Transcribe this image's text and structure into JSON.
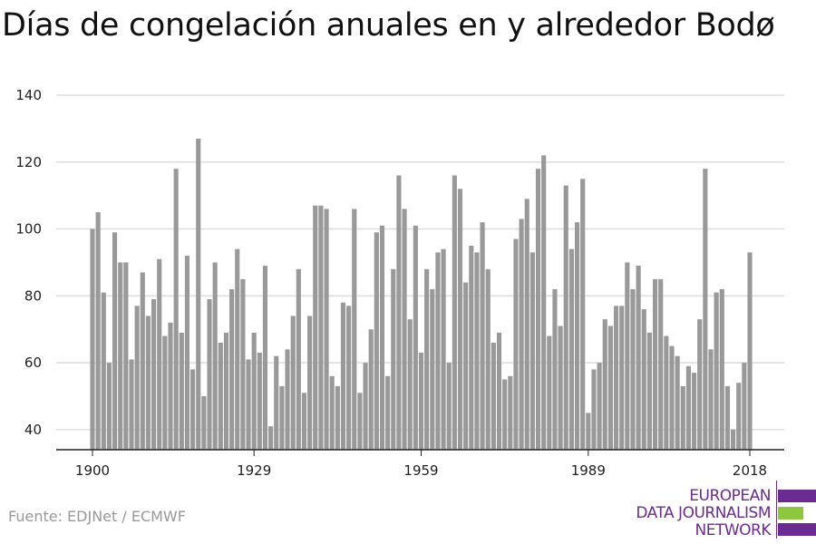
{
  "title": "Días de congelación anuales en y alrededor Bodø",
  "source": "Fuente: EDJNet / ECMWF",
  "logo": {
    "line1": "EUROPEAN",
    "line2": "DATA JOURNALISM",
    "line3": "NETWORK",
    "color_primary": "#6b2c91",
    "color_accent": "#8dc63f"
  },
  "chart_data": {
    "type": "bar",
    "title": "Días de congelación anuales en y alrededor Bodø",
    "xlabel": "",
    "ylabel": "",
    "bar_color": "#999999",
    "grid": true,
    "ylim": [
      34,
      140
    ],
    "yticks": [
      40,
      60,
      80,
      100,
      120,
      140
    ],
    "xticks": [
      1900,
      1929,
      1959,
      1989,
      2018
    ],
    "x_start": 1900,
    "x_end": 2018,
    "values": [
      100,
      105,
      81,
      60,
      99,
      90,
      90,
      61,
      77,
      87,
      74,
      79,
      91,
      68,
      72,
      118,
      69,
      92,
      58,
      127,
      50,
      79,
      90,
      66,
      69,
      82,
      94,
      85,
      61,
      69,
      63,
      89,
      41,
      62,
      53,
      64,
      74,
      88,
      51,
      74,
      107,
      107,
      106,
      56,
      53,
      78,
      77,
      106,
      51,
      60,
      70,
      99,
      101,
      56,
      88,
      116,
      106,
      73,
      101,
      63,
      88,
      82,
      93,
      94,
      60,
      116,
      112,
      84,
      95,
      93,
      102,
      88,
      66,
      69,
      55,
      56,
      97,
      103,
      109,
      93,
      118,
      122,
      68,
      82,
      71,
      113,
      94,
      102,
      115,
      45,
      58,
      60,
      73,
      71,
      77,
      77,
      90,
      82,
      89,
      76,
      69,
      85,
      85,
      68,
      65,
      62,
      53,
      59,
      57,
      73,
      118,
      64,
      81,
      82,
      53,
      40,
      54,
      60,
      93
    ]
  }
}
